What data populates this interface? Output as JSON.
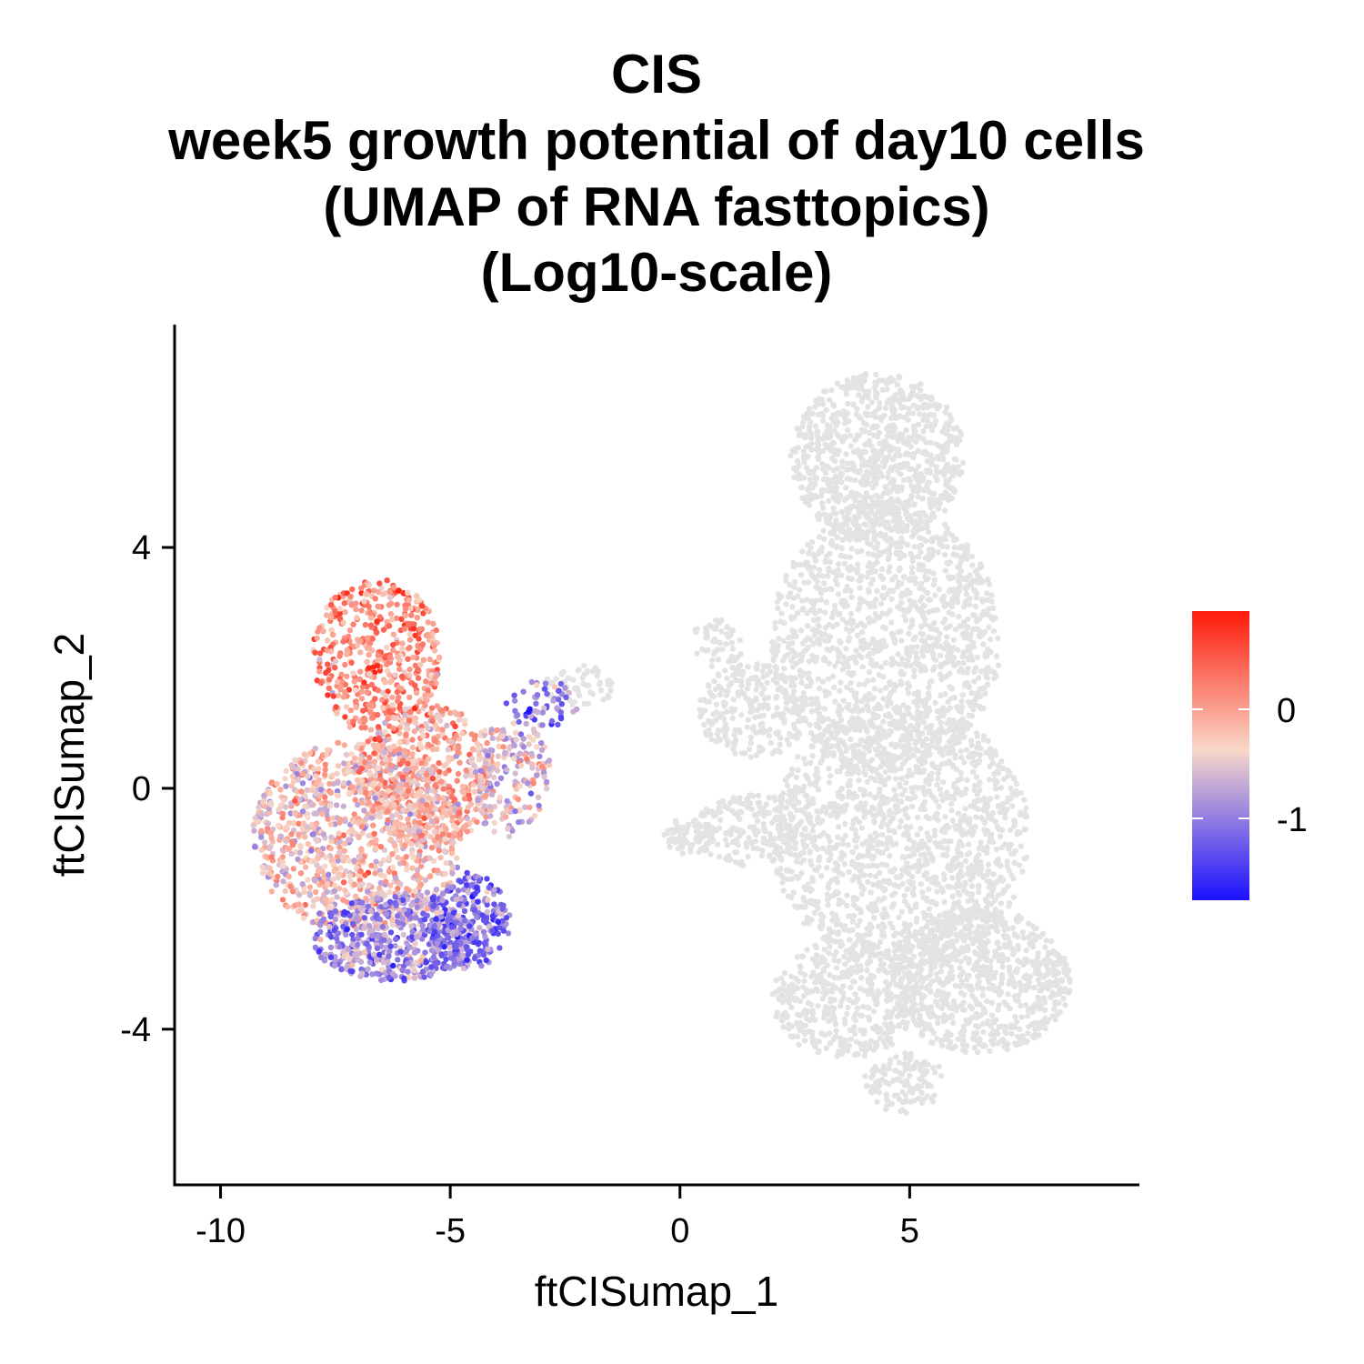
{
  "chart_data": {
    "type": "scatter",
    "title_lines": [
      "CIS",
      "week5 growth potential of day10 cells",
      "(UMAP of RNA fasttopics)",
      "(Log10-scale)"
    ],
    "xlabel": "ftCISumap_1",
    "ylabel": "ftCISumap_2",
    "xlim": [
      -11,
      10
    ],
    "ylim": [
      -6.6,
      7.7
    ],
    "x_ticks": [
      -10,
      -5,
      0,
      5
    ],
    "x_tick_labels": [
      "-10",
      "-5",
      "0",
      "5"
    ],
    "y_ticks": [
      -4,
      0,
      4
    ],
    "y_tick_labels": [
      "-4",
      "0",
      "4"
    ],
    "grid": false,
    "legend": {
      "placement": "right",
      "type": "colorbar",
      "range": [
        -1.75,
        0.9
      ],
      "ticks": [
        -1,
        0
      ],
      "tick_labels": [
        "-1",
        "0"
      ],
      "colors": {
        "low": "#1a10ff",
        "mid": "#f8d8c8",
        "high": "#ff1a0a"
      }
    },
    "na_color": "#e3e3e3",
    "series": [
      {
        "group": "unscored-cells",
        "color": "#e3e3e3",
        "regions": [
          {
            "cx": 4.3,
            "cy": 5.5,
            "rx": 1.9,
            "ry": 1.4,
            "count": 900
          },
          {
            "cx": 4.5,
            "cy": 2.5,
            "rx": 2.5,
            "ry": 2.2,
            "count": 1300
          },
          {
            "cx": 4.8,
            "cy": -0.8,
            "rx": 2.8,
            "ry": 2.2,
            "count": 1500
          },
          {
            "cx": 6.5,
            "cy": -3.2,
            "rx": 2.0,
            "ry": 1.2,
            "count": 800
          },
          {
            "cx": 3.6,
            "cy": -3.5,
            "rx": 1.6,
            "ry": 1.0,
            "count": 450
          },
          {
            "cx": 4.9,
            "cy": -4.9,
            "rx": 0.9,
            "ry": 0.5,
            "count": 120
          },
          {
            "cx": 1.6,
            "cy": 1.3,
            "rx": 1.2,
            "ry": 0.8,
            "count": 250
          },
          {
            "cx": 1.6,
            "cy": -0.7,
            "rx": 1.3,
            "ry": 0.6,
            "count": 200
          },
          {
            "cx": 0.2,
            "cy": -0.8,
            "rx": 0.6,
            "ry": 0.3,
            "count": 70
          },
          {
            "cx": -2.2,
            "cy": 1.7,
            "rx": 0.8,
            "ry": 0.35,
            "count": 60
          },
          {
            "cx": 0.8,
            "cy": 2.4,
            "rx": 0.6,
            "ry": 0.4,
            "count": 50
          }
        ]
      },
      {
        "group": "day10-cells",
        "color_scale": "log10",
        "regions": [
          {
            "cx": -6.6,
            "cy": 2.2,
            "rx": 1.4,
            "ry": 1.3,
            "count": 500,
            "mean": 0.15
          },
          {
            "cx": -7.0,
            "cy": -0.8,
            "rx": 2.3,
            "ry": 1.6,
            "count": 1100,
            "mean": -0.3
          },
          {
            "cx": -5.5,
            "cy": 0.2,
            "rx": 1.5,
            "ry": 1.2,
            "count": 500,
            "mean": -0.1
          },
          {
            "cx": -6.2,
            "cy": -2.5,
            "rx": 1.8,
            "ry": 0.7,
            "count": 500,
            "mean": -0.9
          },
          {
            "cx": -4.6,
            "cy": -2.2,
            "rx": 0.9,
            "ry": 0.8,
            "count": 250,
            "mean": -1.1
          },
          {
            "cx": -3.7,
            "cy": 0.2,
            "rx": 0.9,
            "ry": 1.0,
            "count": 200,
            "mean": -0.5
          },
          {
            "cx": -3.0,
            "cy": 1.4,
            "rx": 0.8,
            "ry": 0.4,
            "count": 60,
            "mean": -1.0
          }
        ]
      }
    ]
  }
}
